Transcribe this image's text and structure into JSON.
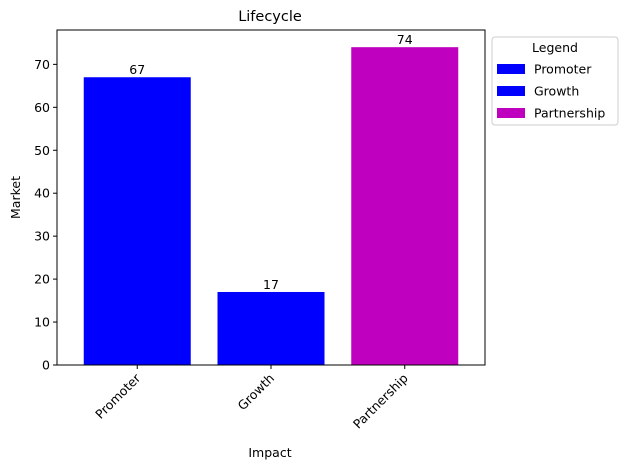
{
  "chart_data": {
    "type": "bar",
    "title": "Lifecycle",
    "xlabel": "Impact",
    "ylabel": "Market",
    "categories": [
      "Promoter",
      "Growth",
      "Partnership"
    ],
    "values": [
      67,
      17,
      74
    ],
    "colors": [
      "#0000ff",
      "#0000ff",
      "#bf00bf"
    ],
    "ylim": [
      0,
      78
    ],
    "yticks": [
      0,
      10,
      20,
      30,
      40,
      50,
      60,
      70
    ],
    "grid": false,
    "legend": {
      "title": "Legend",
      "placement": "outside-right-top",
      "entries": [
        "Promoter",
        "Growth",
        "Partnership"
      ]
    }
  }
}
